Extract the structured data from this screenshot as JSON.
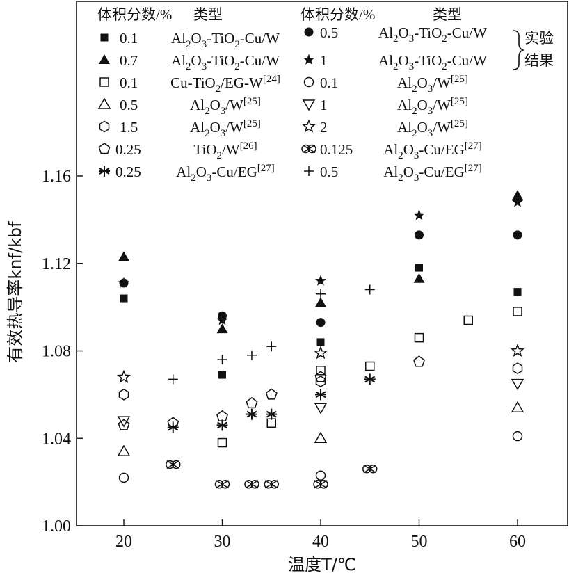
{
  "chart_data": {
    "type": "scatter",
    "xlabel": "温度T/℃",
    "ylabel": "有效热导率knf/kbf",
    "xlim": [
      10,
      65
    ],
    "ylim": [
      1.0,
      1.24
    ],
    "x_ticks": [
      "20",
      "30",
      "40",
      "50",
      "60"
    ],
    "y_ticks": [
      "1.00",
      "1.04",
      "1.08",
      "1.12",
      "1.16"
    ],
    "legend_header": {
      "fraction": "体积分数/%",
      "type": "类型"
    },
    "legend_group_label": [
      "实验",
      "结果"
    ],
    "series": [
      {
        "fraction": "0.1",
        "type": "Al2O3-TiO2-Cu/W",
        "marker": "square-filled",
        "points": [
          [
            20,
            1.104
          ],
          [
            30,
            1.069
          ],
          [
            40,
            1.084
          ],
          [
            50,
            1.118
          ],
          [
            60,
            1.107
          ]
        ]
      },
      {
        "fraction": "0.7",
        "type": "Al2O3-TiO2-Cu/W",
        "marker": "triangle-filled",
        "points": [
          [
            20,
            1.123
          ],
          [
            30,
            1.09
          ],
          [
            40,
            1.102
          ],
          [
            50,
            1.113
          ],
          [
            60,
            1.151
          ]
        ]
      },
      {
        "fraction": "0.1",
        "type": "Cu-TiO2/EG-W[24]",
        "marker": "square-open",
        "points": [
          [
            30,
            1.038
          ],
          [
            35,
            1.047
          ],
          [
            40,
            1.071
          ],
          [
            45,
            1.073
          ],
          [
            50,
            1.086
          ],
          [
            55,
            1.094
          ],
          [
            60,
            1.098
          ]
        ]
      },
      {
        "fraction": "0.5",
        "type": "Al2O3/W[25]",
        "marker": "triangle-open",
        "points": [
          [
            20,
            1.034
          ],
          [
            40,
            1.04
          ],
          [
            60,
            1.054
          ]
        ]
      },
      {
        "fraction": "1.5",
        "type": "Al2O3/W[25]",
        "marker": "hexagon-open",
        "points": [
          [
            20,
            1.06
          ],
          [
            40,
            1.066
          ],
          [
            60,
            1.072
          ]
        ]
      },
      {
        "fraction": "0.25",
        "type": "TiO2/W[26]",
        "marker": "pentagon-open",
        "points": [
          [
            20,
            1.046
          ],
          [
            25,
            1.047
          ],
          [
            30,
            1.05
          ],
          [
            33,
            1.056
          ],
          [
            35,
            1.06
          ],
          [
            40,
            1.068
          ],
          [
            50,
            1.075
          ]
        ]
      },
      {
        "fraction": "0.25",
        "type": "Al2O3-Cu/EG[27]",
        "marker": "asterisk",
        "points": [
          [
            25,
            1.045
          ],
          [
            30,
            1.046
          ],
          [
            33,
            1.051
          ],
          [
            35,
            1.051
          ],
          [
            40,
            1.06
          ],
          [
            45,
            1.067
          ]
        ]
      },
      {
        "fraction": "0.5",
        "type": "Al2O3-TiO2-Cu/W",
        "marker": "circle-filled",
        "points": [
          [
            20,
            1.111
          ],
          [
            30,
            1.096
          ],
          [
            40,
            1.093
          ],
          [
            50,
            1.133
          ],
          [
            60,
            1.133
          ]
        ]
      },
      {
        "fraction": "1",
        "type": "Al2O3-TiO2-Cu/W",
        "marker": "star-filled",
        "points": [
          [
            20,
            1.111
          ],
          [
            30,
            1.094
          ],
          [
            40,
            1.112
          ],
          [
            50,
            1.142
          ],
          [
            60,
            1.148
          ]
        ]
      },
      {
        "fraction": "0.1",
        "type": "Al2O3/W[25]",
        "marker": "circle-open",
        "points": [
          [
            20,
            1.022
          ],
          [
            40,
            1.023
          ],
          [
            60,
            1.041
          ]
        ]
      },
      {
        "fraction": "1",
        "type": "Al2O3/W[25]",
        "marker": "triangle-down-open",
        "points": [
          [
            20,
            1.048
          ],
          [
            40,
            1.054
          ],
          [
            60,
            1.065
          ]
        ]
      },
      {
        "fraction": "2",
        "type": "Al2O3/W[25]",
        "marker": "star-open",
        "points": [
          [
            20,
            1.068
          ],
          [
            40,
            1.079
          ],
          [
            60,
            1.08
          ]
        ]
      },
      {
        "fraction": "0.125",
        "type": "Al2O3-Cu/EG[27]",
        "marker": "circle-cross",
        "points": [
          [
            25,
            1.028
          ],
          [
            30,
            1.019
          ],
          [
            33,
            1.019
          ],
          [
            35,
            1.019
          ],
          [
            40,
            1.019
          ],
          [
            45,
            1.026
          ]
        ]
      },
      {
        "fraction": "0.5",
        "type": "Al2O3-Cu/EG[27]",
        "marker": "plus",
        "points": [
          [
            25,
            1.067
          ],
          [
            30,
            1.076
          ],
          [
            33,
            1.078
          ],
          [
            35,
            1.082
          ],
          [
            40,
            1.106
          ],
          [
            45,
            1.108
          ]
        ]
      }
    ]
  }
}
